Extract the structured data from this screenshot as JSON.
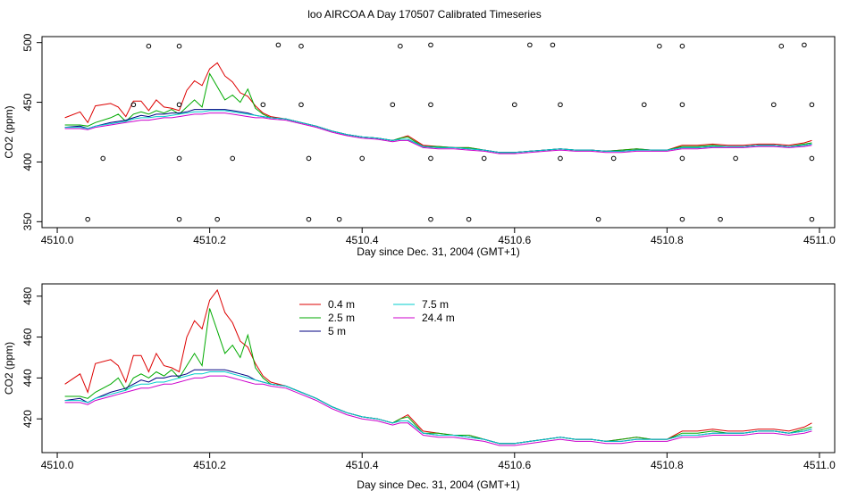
{
  "figure": {
    "title": "loo AIRCOA A  Day 170507  Calibrated Timeseries"
  },
  "chart_data": [
    {
      "type": "line",
      "panel": "top",
      "title": "",
      "xlabel": "Day since Dec. 31, 2004 (GMT+1)",
      "ylabel": "CO2 (ppm)",
      "xlim": [
        4509.98,
        4511.02
      ],
      "ylim": [
        345,
        505
      ],
      "xticks": [
        4510.0,
        4510.2,
        4510.4,
        4510.6,
        4510.8,
        4511.0
      ],
      "yticks": [
        350,
        400,
        450,
        500
      ],
      "xtick_labels": [
        "4510.0",
        "4510.2",
        "4510.4",
        "4510.6",
        "4510.8",
        "4511.0"
      ],
      "ytick_labels": [
        "350",
        "400",
        "450",
        "500"
      ],
      "grid": false,
      "x": [
        4510.01,
        4510.03,
        4510.04,
        4510.05,
        4510.07,
        4510.08,
        4510.09,
        4510.1,
        4510.11,
        4510.12,
        4510.13,
        4510.14,
        4510.15,
        4510.16,
        4510.17,
        4510.18,
        4510.19,
        4510.2,
        4510.21,
        4510.22,
        4510.23,
        4510.24,
        4510.25,
        4510.26,
        4510.27,
        4510.28,
        4510.3,
        4510.32,
        4510.34,
        4510.36,
        4510.38,
        4510.4,
        4510.42,
        4510.44,
        4510.45,
        4510.46,
        4510.48,
        4510.5,
        4510.52,
        4510.54,
        4510.56,
        4510.58,
        4510.6,
        4510.62,
        4510.64,
        4510.66,
        4510.68,
        4510.7,
        4510.72,
        4510.74,
        4510.76,
        4510.78,
        4510.8,
        4510.82,
        4510.84,
        4510.86,
        4510.88,
        4510.9,
        4510.92,
        4510.94,
        4510.96,
        4510.98,
        4510.99
      ],
      "series": [
        {
          "name": "0.4 m",
          "color": "#dd0000",
          "values": [
            437,
            442,
            433,
            447,
            449,
            446,
            438,
            451,
            451,
            443,
            452,
            446,
            445,
            443,
            460,
            468,
            464,
            478,
            483,
            472,
            467,
            458,
            455,
            447,
            441,
            438,
            436,
            433,
            430,
            426,
            423,
            421,
            420,
            418,
            420,
            422,
            414,
            413,
            412,
            412,
            410,
            408,
            408,
            409,
            410,
            411,
            410,
            410,
            409,
            410,
            411,
            410,
            410,
            414,
            414,
            415,
            414,
            414,
            415,
            415,
            414,
            416,
            418
          ]
        },
        {
          "name": "2.5 m",
          "color": "#00aa00",
          "values": [
            431,
            431,
            430,
            433,
            437,
            440,
            434,
            440,
            442,
            440,
            443,
            441,
            444,
            440,
            446,
            452,
            446,
            474,
            463,
            452,
            456,
            450,
            461,
            445,
            440,
            437,
            436,
            433,
            430,
            426,
            423,
            421,
            420,
            418,
            420,
            421,
            413,
            413,
            412,
            412,
            410,
            408,
            408,
            409,
            410,
            411,
            410,
            410,
            409,
            410,
            411,
            410,
            410,
            413,
            413,
            414,
            413,
            413,
            414,
            414,
            413,
            415,
            416
          ]
        },
        {
          "name": "5 m",
          "color": "#000080",
          "values": [
            429,
            430,
            428,
            430,
            433,
            434,
            435,
            437,
            439,
            438,
            440,
            440,
            441,
            441,
            442,
            444,
            444,
            444,
            444,
            444,
            443,
            442,
            441,
            439,
            438,
            437,
            436,
            433,
            430,
            426,
            423,
            421,
            420,
            418,
            419,
            419,
            413,
            412,
            412,
            411,
            410,
            408,
            408,
            409,
            410,
            411,
            410,
            410,
            409,
            409,
            410,
            410,
            410,
            412,
            412,
            413,
            413,
            413,
            414,
            414,
            413,
            414,
            415
          ]
        },
        {
          "name": "7.5 m",
          "color": "#00cccc",
          "values": [
            429,
            429,
            428,
            430,
            432,
            433,
            434,
            436,
            437,
            437,
            438,
            438,
            439,
            440,
            441,
            442,
            442,
            443,
            443,
            443,
            442,
            441,
            440,
            439,
            438,
            437,
            436,
            433,
            430,
            426,
            423,
            421,
            420,
            418,
            419,
            419,
            413,
            412,
            412,
            411,
            410,
            408,
            408,
            409,
            410,
            411,
            410,
            410,
            409,
            409,
            410,
            410,
            410,
            412,
            412,
            413,
            413,
            413,
            414,
            414,
            413,
            414,
            415
          ]
        },
        {
          "name": "24.4 m",
          "color": "#cc00cc",
          "values": [
            428,
            428,
            427,
            429,
            431,
            432,
            433,
            434,
            435,
            435,
            436,
            437,
            437,
            438,
            439,
            440,
            440,
            441,
            441,
            441,
            440,
            439,
            438,
            437,
            437,
            436,
            435,
            432,
            429,
            425,
            422,
            420,
            419,
            417,
            418,
            418,
            412,
            411,
            411,
            410,
            409,
            407,
            407,
            408,
            409,
            410,
            409,
            409,
            408,
            408,
            409,
            409,
            409,
            411,
            411,
            412,
            412,
            412,
            413,
            413,
            412,
            413,
            414
          ]
        }
      ],
      "points": {
        "name": "",
        "color": "#000000",
        "x": [
          4510.04,
          4510.06,
          4510.1,
          4510.12,
          4510.16,
          4510.16,
          4510.16,
          4510.16,
          4510.21,
          4510.23,
          4510.27,
          4510.29,
          4510.32,
          4510.32,
          4510.33,
          4510.33,
          4510.37,
          4510.4,
          4510.44,
          4510.45,
          4510.49,
          4510.49,
          4510.49,
          4510.49,
          4510.54,
          4510.56,
          4510.6,
          4510.62,
          4510.65,
          4510.66,
          4510.66,
          4510.71,
          4510.73,
          4510.77,
          4510.79,
          4510.82,
          4510.82,
          4510.82,
          4510.82,
          4510.87,
          4510.89,
          4510.94,
          4510.95,
          4510.98,
          4510.99,
          4510.99,
          4510.99
        ],
        "y": [
          352,
          403,
          448,
          497,
          352,
          403,
          448,
          497,
          352,
          403,
          448,
          498,
          497,
          448,
          403,
          352,
          352,
          403,
          448,
          497,
          352,
          403,
          448,
          498,
          352,
          403,
          448,
          498,
          498,
          448,
          403,
          352,
          403,
          448,
          497,
          448,
          403,
          352,
          497,
          352,
          403,
          448,
          497,
          498,
          448,
          403,
          352
        ]
      }
    },
    {
      "type": "line",
      "panel": "bottom",
      "title": "",
      "xlabel": "Day since Dec. 31, 2004 (GMT+1)",
      "ylabel": "CO2 (ppm)",
      "xlim": [
        4509.98,
        4511.02
      ],
      "ylim": [
        403.5,
        486
      ],
      "xticks": [
        4510.0,
        4510.2,
        4510.4,
        4510.6,
        4510.8,
        4511.0
      ],
      "yticks": [
        420,
        440,
        460,
        480
      ],
      "xtick_labels": [
        "4510.0",
        "4510.2",
        "4510.4",
        "4510.6",
        "4510.8",
        "4511.0"
      ],
      "ytick_labels": [
        "420",
        "440",
        "460",
        "480"
      ],
      "grid": false,
      "legend": "top-center",
      "x": [
        4510.01,
        4510.03,
        4510.04,
        4510.05,
        4510.07,
        4510.08,
        4510.09,
        4510.1,
        4510.11,
        4510.12,
        4510.13,
        4510.14,
        4510.15,
        4510.16,
        4510.17,
        4510.18,
        4510.19,
        4510.2,
        4510.21,
        4510.22,
        4510.23,
        4510.24,
        4510.25,
        4510.26,
        4510.27,
        4510.28,
        4510.3,
        4510.32,
        4510.34,
        4510.36,
        4510.38,
        4510.4,
        4510.42,
        4510.44,
        4510.45,
        4510.46,
        4510.48,
        4510.5,
        4510.52,
        4510.54,
        4510.56,
        4510.58,
        4510.6,
        4510.62,
        4510.64,
        4510.66,
        4510.68,
        4510.7,
        4510.72,
        4510.74,
        4510.76,
        4510.78,
        4510.8,
        4510.82,
        4510.84,
        4510.86,
        4510.88,
        4510.9,
        4510.92,
        4510.94,
        4510.96,
        4510.98,
        4510.99
      ],
      "series": [
        {
          "name": "0.4 m",
          "color": "#dd0000",
          "values": [
            437,
            442,
            433,
            447,
            449,
            446,
            438,
            451,
            451,
            443,
            452,
            446,
            445,
            443,
            460,
            468,
            464,
            478,
            483,
            472,
            467,
            458,
            455,
            447,
            441,
            438,
            436,
            433,
            430,
            426,
            423,
            421,
            420,
            418,
            420,
            422,
            414,
            413,
            412,
            412,
            410,
            408,
            408,
            409,
            410,
            411,
            410,
            410,
            409,
            410,
            411,
            410,
            410,
            414,
            414,
            415,
            414,
            414,
            415,
            415,
            414,
            416,
            418
          ]
        },
        {
          "name": "2.5 m",
          "color": "#00aa00",
          "values": [
            431,
            431,
            430,
            433,
            437,
            440,
            434,
            440,
            442,
            440,
            443,
            441,
            444,
            440,
            446,
            452,
            446,
            474,
            463,
            452,
            456,
            450,
            461,
            445,
            440,
            437,
            436,
            433,
            430,
            426,
            423,
            421,
            420,
            418,
            420,
            421,
            413,
            413,
            412,
            412,
            410,
            408,
            408,
            409,
            410,
            411,
            410,
            410,
            409,
            410,
            411,
            410,
            410,
            413,
            413,
            414,
            413,
            413,
            414,
            414,
            413,
            415,
            416
          ]
        },
        {
          "name": "5 m",
          "color": "#000080",
          "values": [
            429,
            430,
            428,
            430,
            433,
            434,
            435,
            437,
            439,
            438,
            440,
            440,
            441,
            441,
            442,
            444,
            444,
            444,
            444,
            444,
            443,
            442,
            441,
            439,
            438,
            437,
            436,
            433,
            430,
            426,
            423,
            421,
            420,
            418,
            419,
            419,
            413,
            412,
            412,
            411,
            410,
            408,
            408,
            409,
            410,
            411,
            410,
            410,
            409,
            409,
            410,
            410,
            410,
            412,
            412,
            413,
            413,
            413,
            414,
            414,
            413,
            414,
            415
          ]
        },
        {
          "name": "7.5 m",
          "color": "#00cccc",
          "values": [
            429,
            429,
            428,
            430,
            432,
            433,
            434,
            436,
            437,
            437,
            438,
            438,
            439,
            440,
            441,
            442,
            442,
            443,
            443,
            443,
            442,
            441,
            440,
            439,
            438,
            437,
            436,
            433,
            430,
            426,
            423,
            421,
            420,
            418,
            419,
            419,
            413,
            412,
            412,
            411,
            410,
            408,
            408,
            409,
            410,
            411,
            410,
            410,
            409,
            409,
            410,
            410,
            410,
            412,
            412,
            413,
            413,
            413,
            414,
            414,
            413,
            414,
            415
          ]
        },
        {
          "name": "24.4 m",
          "color": "#cc00cc",
          "values": [
            428,
            428,
            427,
            429,
            431,
            432,
            433,
            434,
            435,
            435,
            436,
            437,
            437,
            438,
            439,
            440,
            440,
            441,
            441,
            441,
            440,
            439,
            438,
            437,
            437,
            436,
            435,
            432,
            429,
            425,
            422,
            420,
            419,
            417,
            418,
            418,
            412,
            411,
            411,
            410,
            409,
            407,
            407,
            408,
            409,
            410,
            409,
            409,
            408,
            408,
            409,
            409,
            409,
            411,
            411,
            412,
            412,
            412,
            413,
            413,
            412,
            413,
            414
          ]
        }
      ]
    }
  ]
}
